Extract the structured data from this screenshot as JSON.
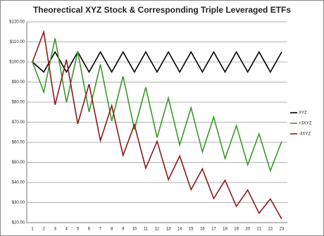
{
  "chart_data": {
    "type": "line",
    "title": "Theorectical XYZ Stock & Corresponding Triple Leveraged ETFs",
    "categories": [
      "1",
      "2",
      "3",
      "4",
      "5",
      "6",
      "7",
      "8",
      "9",
      "10",
      "11",
      "12",
      "13",
      "14",
      "15",
      "16",
      "17",
      "18",
      "19",
      "20",
      "21",
      "22",
      "23"
    ],
    "series": [
      {
        "name": "XYZ",
        "color": "#000000",
        "values": [
          100,
          95,
          105,
          95,
          105,
          95,
          105,
          95,
          105,
          95,
          105,
          95,
          105,
          95,
          105,
          95,
          105,
          95,
          105,
          95,
          105,
          95,
          105
        ]
      },
      {
        "name": "+3XYZ",
        "color": "#3a9a2a",
        "values": [
          100,
          85,
          111.8,
          79.9,
          105.1,
          75.1,
          98.8,
          70.6,
          92.9,
          66.4,
          87.4,
          62.4,
          82.1,
          58.7,
          77.2,
          55.2,
          72.6,
          51.9,
          68.3,
          48.8,
          64.2,
          45.9,
          60.4
        ]
      },
      {
        "name": "-3XYZ",
        "color": "#8b1a1a",
        "values": [
          100,
          115,
          78.7,
          101.2,
          69.2,
          89.0,
          60.9,
          78.3,
          53.5,
          68.8,
          47.1,
          60.5,
          41.4,
          53.2,
          36.4,
          46.8,
          32.0,
          41.1,
          28.1,
          36.2,
          24.7,
          31.8,
          21.8
        ]
      }
    ],
    "ylim": [
      20,
      120
    ],
    "yticks": [
      {
        "value": 20,
        "label": "$20.00"
      },
      {
        "value": 30,
        "label": "$30.00"
      },
      {
        "value": 40,
        "label": "$40.00"
      },
      {
        "value": 50,
        "label": "$50.00"
      },
      {
        "value": 60,
        "label": "$60.00"
      },
      {
        "value": 70,
        "label": "$70.00"
      },
      {
        "value": 80,
        "label": "$80.00"
      },
      {
        "value": 90,
        "label": "$90.00"
      },
      {
        "value": 100,
        "label": "$100.00"
      },
      {
        "value": 110,
        "label": "$110.00"
      },
      {
        "value": 120,
        "label": "$120.00"
      }
    ],
    "grid": true,
    "legend": "right"
  }
}
